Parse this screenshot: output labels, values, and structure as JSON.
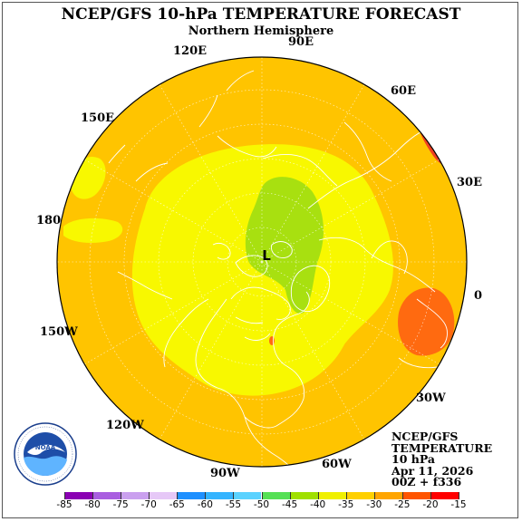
{
  "title": "NCEP/GFS 10-hPa TEMPERATURE FORECAST",
  "subtitle": "Northern Hemisphere",
  "longitude_labels": [
    {
      "text": "90E"
    },
    {
      "text": "60E"
    },
    {
      "text": "30E"
    },
    {
      "text": "0"
    },
    {
      "text": "30W"
    },
    {
      "text": "60W"
    },
    {
      "text": "90W"
    },
    {
      "text": "120W"
    },
    {
      "text": "150W"
    },
    {
      "text": "180"
    },
    {
      "text": "150E"
    },
    {
      "text": "120E"
    }
  ],
  "low_marker": "L",
  "info_block": [
    "NCEP/GFS",
    "TEMPERATURE",
    "10 hPa",
    "Apr 11, 2026",
    "00Z + f336"
  ],
  "logo": {
    "name": "NOAA",
    "ring_text": "NATIONAL OCEANIC AND ATMOSPHERIC ADMINISTRATION · U.S. DEPARTMENT OF COMMERCE"
  },
  "colorbar": {
    "ticks": [
      "-85",
      "-80",
      "-75",
      "-70",
      "-65",
      "-60",
      "-55",
      "-50",
      "-45",
      "-40",
      "-35",
      "-30",
      "-25",
      "-20",
      "-15"
    ],
    "colors": [
      "#8a00b3",
      "#a95ee0",
      "#caa0ef",
      "#e6c8f7",
      "#1e90ff",
      "#34b4ff",
      "#5ad2ff",
      "#55e055",
      "#a0e000",
      "#f0f000",
      "#ffd000",
      "#ffa500",
      "#ff5500",
      "#ff0000",
      "#b0b0b0"
    ]
  },
  "field_colors": {
    "outer": "#ffc400",
    "inner": "#f8f800",
    "core": "#a8e010",
    "warm": "#ff6a10",
    "hot": "#f04020",
    "coast": "#ffffff"
  }
}
